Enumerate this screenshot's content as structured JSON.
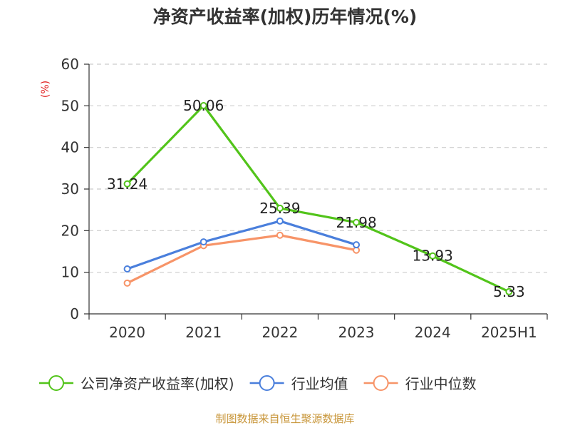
{
  "source_note": "制图数据来自恒生聚源数据库",
  "chart_data": {
    "type": "line",
    "title": "净资产收益率(加权)历年情况(%)",
    "ylabel": "(%)",
    "xlabel": "",
    "categories": [
      "2020",
      "2021",
      "2022",
      "2023",
      "2024",
      "2025H1"
    ],
    "ylim": [
      0,
      60
    ],
    "yticks": [
      0,
      10,
      20,
      30,
      40,
      50,
      60
    ],
    "grid": true,
    "legend_position": "bottom",
    "series": [
      {
        "name": "公司净资产收益率(加权)",
        "color": "#52c41a",
        "values": [
          31.24,
          50.06,
          25.39,
          21.98,
          13.93,
          5.33
        ],
        "labels": [
          "31.24",
          "50.06",
          "25.39",
          "21.98",
          "13.93",
          "5.33"
        ]
      },
      {
        "name": "行业均值",
        "color": "#4a7fdc",
        "values": [
          10.8,
          17.3,
          22.3,
          16.6,
          null,
          null
        ]
      },
      {
        "name": "行业中位数",
        "color": "#f79468",
        "values": [
          7.4,
          16.4,
          18.9,
          15.3,
          null,
          null
        ]
      }
    ]
  }
}
